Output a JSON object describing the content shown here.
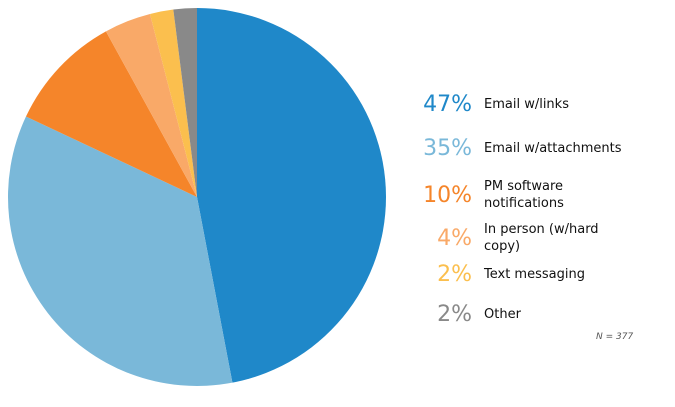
{
  "chart_data": {
    "type": "pie",
    "categories": [
      "Email w/links",
      "Email w/attachments",
      "PM software notifications",
      "In person (w/hard copy)",
      "Text messaging",
      "Other"
    ],
    "values": [
      47,
      35,
      10,
      4,
      2,
      2
    ],
    "value_labels": [
      "47%",
      "35%",
      "10%",
      "4%",
      "2%",
      "2%"
    ],
    "colors": [
      "#1f88c9",
      "#7ab8d9",
      "#f5852a",
      "#f9a968",
      "#fbbf4e",
      "#898989"
    ],
    "annotation": "N = 377"
  }
}
